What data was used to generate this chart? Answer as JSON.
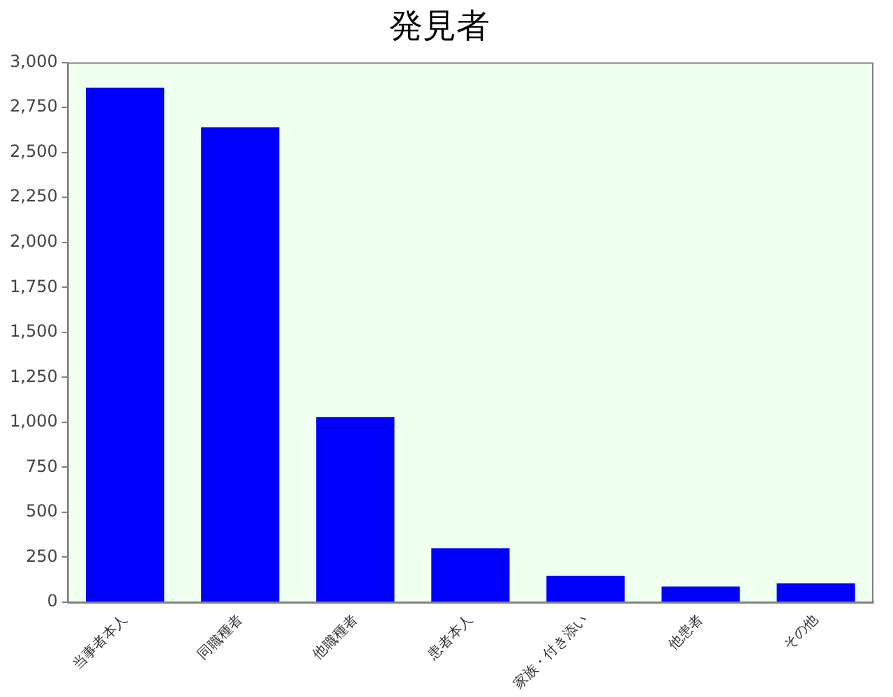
{
  "chart_data": {
    "type": "bar",
    "title": "発見者",
    "categories": [
      "当事者本人",
      "同職種者",
      "他職種者",
      "患者本人",
      "家族・付き添い",
      "他患者",
      "その他"
    ],
    "values": [
      2860,
      2640,
      1030,
      300,
      147,
      87,
      105
    ],
    "color": "#0000ff",
    "ylim": [
      0,
      3000
    ],
    "yticks": [
      0,
      250,
      500,
      750,
      {
        "value": 1000,
        "label": "1,000"
      },
      {
        "value": 1250,
        "label": "1,250"
      },
      {
        "value": 1500,
        "label": "1,500"
      },
      {
        "value": 1750,
        "label": "1,750"
      },
      {
        "value": 2000,
        "label": "2,000"
      },
      {
        "value": 2250,
        "label": "2,250"
      },
      {
        "value": 2500,
        "label": "2,500"
      },
      {
        "value": 2750,
        "label": "2,750"
      },
      {
        "value": 3000,
        "label": "3,000"
      }
    ],
    "grid": false,
    "legend": false
  }
}
